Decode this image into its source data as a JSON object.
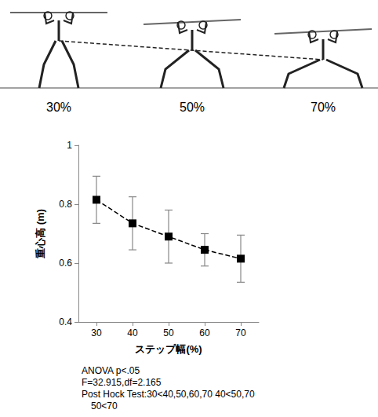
{
  "illustration": {
    "labels": [
      "30%",
      "50%",
      "70%"
    ]
  },
  "chart_data": {
    "type": "line",
    "x_label": "ステップ幅(%)",
    "y_label": "重心高 (m)",
    "x": [
      30,
      40,
      50,
      60,
      70
    ],
    "series": [
      {
        "values": [
          0.815,
          0.735,
          0.69,
          0.645,
          0.615
        ],
        "errors": [
          0.08,
          0.09,
          0.09,
          0.055,
          0.08
        ],
        "color": "#000000",
        "marker": "square",
        "line_style": "dashed"
      }
    ],
    "xlim": [
      25,
      75
    ],
    "xticks": [
      30,
      40,
      50,
      60,
      70
    ],
    "ylim": [
      0.4,
      1
    ],
    "yticks": [
      0.4,
      0.6,
      0.8,
      1
    ],
    "grid": false,
    "annotations": [
      "ANOVA p<.05",
      "F=32.915,df=2.165",
      "Post Hock Test:30<40,50,60,70 40<50,70",
      "50<70"
    ]
  }
}
